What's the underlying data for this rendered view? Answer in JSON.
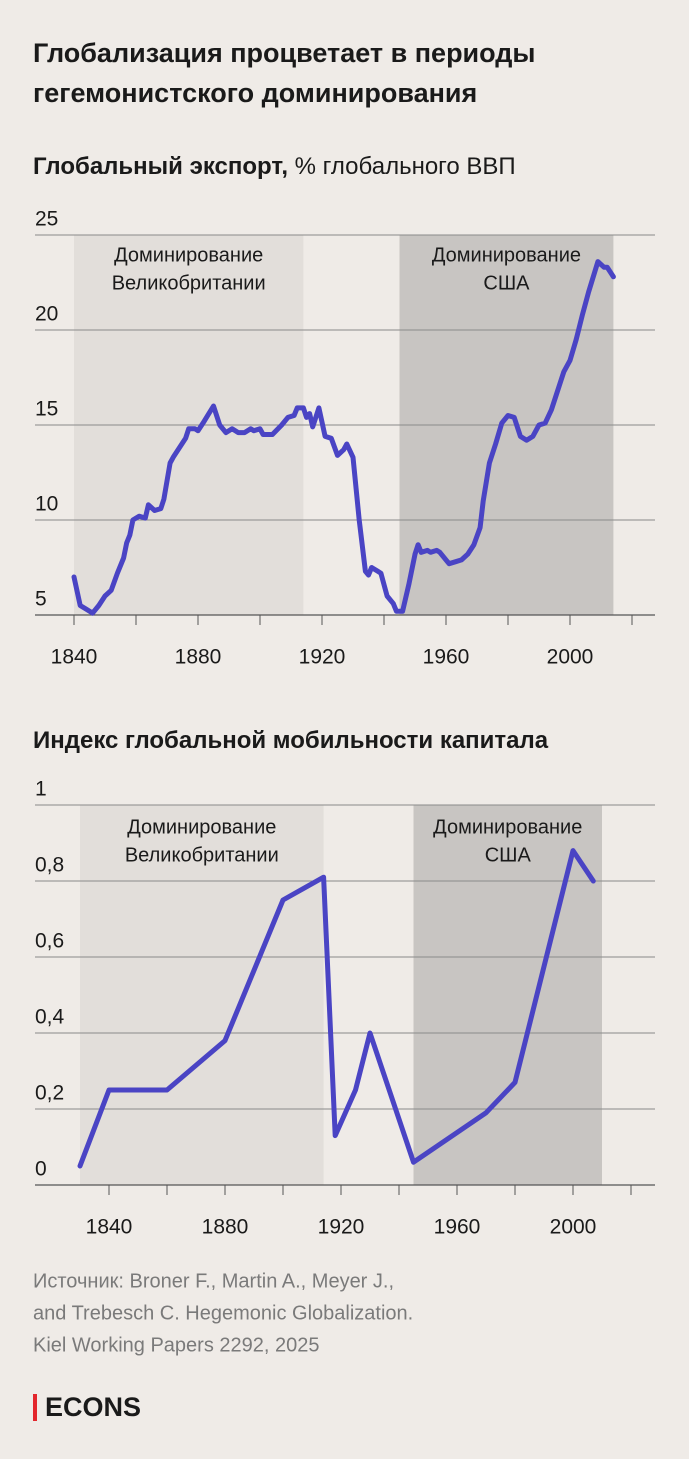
{
  "header": {
    "title": [
      "Глобализация процветает в периоды",
      "гегемонистского доминирования"
    ]
  },
  "chart_data": [
    {
      "type": "line",
      "title": [
        "Глобальный экспорт,",
        "% глобального ВВП"
      ],
      "xlim": [
        1840,
        2020
      ],
      "xticks": [
        1840,
        1880,
        1920,
        1960,
        2000
      ],
      "xminor_ticks": [
        1860,
        1900,
        1940,
        1980,
        2020
      ],
      "ylim": [
        5,
        25
      ],
      "yticks": [
        5,
        10,
        15,
        20,
        25
      ],
      "grid": true,
      "regions": [
        {
          "label": [
            "Доминирование",
            "Великобритании"
          ],
          "start": 1840,
          "end": 1914,
          "color": "#e2deda"
        },
        {
          "label": [
            "Доминирование",
            "США"
          ],
          "start": 1945,
          "end": 2014,
          "color": "#c8c5c2"
        }
      ],
      "x": [
        1840,
        1842,
        1844,
        1846,
        1848,
        1850,
        1852,
        1854,
        1856,
        1857,
        1858,
        1859,
        1861,
        1863,
        1864,
        1866,
        1868,
        1869,
        1871,
        1872,
        1874,
        1876,
        1877,
        1879,
        1880,
        1882,
        1885,
        1887,
        1889,
        1891,
        1893,
        1895,
        1897,
        1898,
        1900,
        1901,
        1904,
        1907,
        1909,
        1911,
        1912,
        1914,
        1915,
        1916,
        1917,
        1918,
        1919,
        1921,
        1923,
        1925,
        1927,
        1928,
        1930,
        1932,
        1934,
        1935,
        1936,
        1938,
        1939,
        1941,
        1943,
        1944,
        1946,
        1948,
        1950,
        1951,
        1952,
        1954,
        1955,
        1957,
        1958,
        1960,
        1961,
        1963,
        1965,
        1967,
        1969,
        1971,
        1972,
        1974,
        1976,
        1978,
        1980,
        1982,
        1984,
        1986,
        1988,
        1990,
        1992,
        1994,
        1996,
        1998,
        2000,
        2002,
        2004,
        2006,
        2009,
        2011,
        2012,
        2014
      ],
      "series": [
        {
          "name": "Глобальный экспорт",
          "color": "#4a44c4",
          "values": [
            7.0,
            5.5,
            5.3,
            5.1,
            5.5,
            6.0,
            6.3,
            7.2,
            8.0,
            8.8,
            9.2,
            10.0,
            10.2,
            10.1,
            10.8,
            10.5,
            10.6,
            11.1,
            13.0,
            13.3,
            13.8,
            14.3,
            14.8,
            14.8,
            14.7,
            15.2,
            16.0,
            15.0,
            14.6,
            14.8,
            14.6,
            14.6,
            14.8,
            14.7,
            14.8,
            14.5,
            14.5,
            15.0,
            15.4,
            15.5,
            15.9,
            15.9,
            15.4,
            15.6,
            14.9,
            15.4,
            15.9,
            14.4,
            14.3,
            13.4,
            13.7,
            14.0,
            13.3,
            10.0,
            7.3,
            7.1,
            7.5,
            7.3,
            7.2,
            6.0,
            5.6,
            5.2,
            5.2,
            6.6,
            8.2,
            8.7,
            8.3,
            8.4,
            8.3,
            8.4,
            8.3,
            7.9,
            7.7,
            7.8,
            7.9,
            8.2,
            8.7,
            9.6,
            11.0,
            13.0,
            14.0,
            15.1,
            15.5,
            15.4,
            14.4,
            14.2,
            14.4,
            15.0,
            15.1,
            15.8,
            16.8,
            17.8,
            18.4,
            19.5,
            20.8,
            22.0,
            23.6,
            23.3,
            23.3,
            22.8
          ]
        }
      ]
    },
    {
      "type": "line",
      "title": [
        "Индекс глобальной мобильности капитала"
      ],
      "xlim": [
        1830,
        2020
      ],
      "xticks": [
        1840,
        1880,
        1920,
        1960,
        2000
      ],
      "xminor_ticks": [
        1860,
        1900,
        1940,
        1980,
        2020
      ],
      "ylim": [
        0,
        1
      ],
      "yticks": [
        0,
        {
          "value": 0.2,
          "label": "0,2"
        },
        {
          "value": 0.4,
          "label": "0,4"
        },
        {
          "value": 0.6,
          "label": "0,6"
        },
        {
          "value": 0.8,
          "label": "0,8"
        },
        1
      ],
      "grid": true,
      "regions": [
        {
          "label": [
            "Доминирование",
            "Великобритании"
          ],
          "start": 1830,
          "end": 1914,
          "color": "#e2deda"
        },
        {
          "label": [
            "Доминирование",
            "США"
          ],
          "start": 1945,
          "end": 2010,
          "color": "#c8c5c2"
        }
      ],
      "x": [
        1830,
        1840,
        1860,
        1880,
        1900,
        1914,
        1918,
        1925,
        1930,
        1945,
        1970,
        1980,
        2000,
        2007
      ],
      "series": [
        {
          "name": "Индекс глобальной мобильности капитала",
          "color": "#4a44c4",
          "values": [
            0.05,
            0.25,
            0.25,
            0.38,
            0.75,
            0.81,
            0.13,
            0.25,
            0.4,
            0.06,
            0.19,
            0.27,
            0.88,
            0.8
          ]
        }
      ]
    }
  ],
  "source": [
    "Источник: Broner F., Martin A., Meyer J.,",
    "and Trebesch C. Hegemonic Globalization.",
    "Kiel Working Papers 2292, 2025"
  ],
  "logo": "ECONS"
}
